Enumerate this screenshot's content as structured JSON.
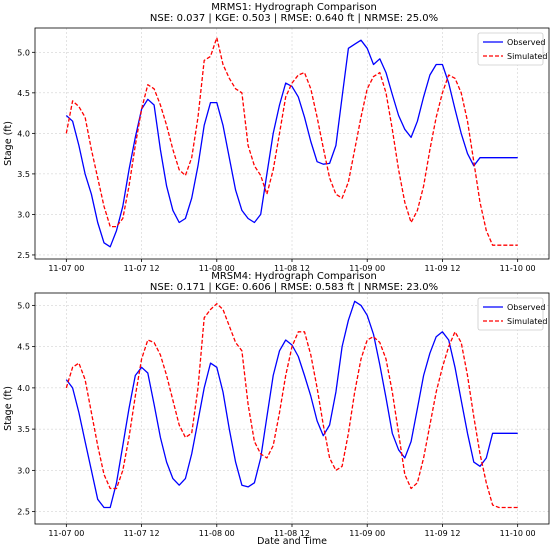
{
  "figure": {
    "xlabel": "Date and Time"
  },
  "chart_data": [
    {
      "type": "line",
      "title_line1": "MRMS1: Hydrograph Comparison",
      "title_line2": "NSE: 0.037 | KGE: 0.503 | RMSE: 0.640 ft | NRMSE: 25.0%",
      "ylabel": "Stage (ft)",
      "xlim": [
        -5,
        77
      ],
      "ylim": [
        2.45,
        5.3
      ],
      "yticks": [
        "2.5",
        "3.0",
        "3.5",
        "4.0",
        "4.5",
        "5.0"
      ],
      "xticks": [
        {
          "at": 0,
          "label": "11-07 00"
        },
        {
          "at": 12,
          "label": "11-07 12"
        },
        {
          "at": 24,
          "label": "11-08 00"
        },
        {
          "at": 36,
          "label": "11-08 12"
        },
        {
          "at": 48,
          "label": "11-09 00"
        },
        {
          "at": 60,
          "label": "11-09 12"
        },
        {
          "at": 72,
          "label": "11-10 00"
        }
      ],
      "legend": {
        "placement": "top-right"
      },
      "series": [
        {
          "name": "Observed",
          "color": "#0000ff",
          "style": "solid",
          "x": [
            0,
            1,
            2,
            3,
            4,
            5,
            6,
            7,
            8,
            9,
            10,
            11,
            12,
            13,
            14,
            15,
            16,
            17,
            18,
            19,
            20,
            21,
            22,
            23,
            24,
            25,
            26,
            27,
            28,
            29,
            30,
            31,
            32,
            33,
            34,
            35,
            36,
            37,
            38,
            39,
            40,
            41,
            42,
            43,
            44,
            45,
            46,
            47,
            48,
            49,
            50,
            51,
            52,
            53,
            54,
            55,
            56,
            57,
            58,
            59,
            60,
            61,
            62,
            63,
            64,
            65,
            66,
            67,
            68,
            69,
            70,
            71,
            72
          ],
          "y": [
            4.22,
            4.15,
            3.85,
            3.5,
            3.25,
            2.9,
            2.65,
            2.6,
            2.8,
            3.1,
            3.55,
            3.95,
            4.3,
            4.42,
            4.35,
            3.8,
            3.35,
            3.05,
            2.9,
            2.95,
            3.2,
            3.6,
            4.1,
            4.38,
            4.38,
            4.1,
            3.7,
            3.3,
            3.05,
            2.95,
            2.9,
            3.0,
            3.5,
            4.0,
            4.35,
            4.62,
            4.58,
            4.45,
            4.2,
            3.9,
            3.65,
            3.62,
            3.63,
            3.85,
            4.45,
            5.05,
            5.1,
            5.15,
            5.05,
            4.85,
            4.92,
            4.75,
            4.48,
            4.22,
            4.05,
            3.95,
            4.15,
            4.45,
            4.72,
            4.85,
            4.85,
            4.62,
            4.3,
            4.0,
            3.75,
            3.6,
            3.7,
            3.7,
            3.7,
            3.7,
            3.7,
            3.7,
            3.7
          ]
        },
        {
          "name": "Simulated",
          "color": "#ff0000",
          "style": "dashed",
          "x": [
            0,
            1,
            2,
            3,
            4,
            5,
            6,
            7,
            8,
            9,
            10,
            11,
            12,
            13,
            14,
            15,
            16,
            17,
            18,
            19,
            20,
            21,
            22,
            23,
            24,
            25,
            26,
            27,
            28,
            29,
            30,
            31,
            32,
            33,
            34,
            35,
            36,
            37,
            38,
            39,
            40,
            41,
            42,
            43,
            44,
            45,
            46,
            47,
            48,
            49,
            50,
            51,
            52,
            53,
            54,
            55,
            56,
            57,
            58,
            59,
            60,
            61,
            62,
            63,
            64,
            65,
            66,
            67,
            68,
            69,
            70,
            71,
            72
          ],
          "y": [
            4.0,
            4.4,
            4.33,
            4.2,
            3.8,
            3.45,
            3.1,
            2.85,
            2.85,
            2.95,
            3.35,
            3.85,
            4.3,
            4.6,
            4.55,
            4.35,
            4.1,
            3.8,
            3.55,
            3.48,
            3.7,
            4.2,
            4.9,
            4.95,
            5.18,
            4.85,
            4.68,
            4.55,
            4.5,
            3.85,
            3.6,
            3.48,
            3.25,
            3.55,
            4.0,
            4.45,
            4.62,
            4.72,
            4.75,
            4.55,
            4.2,
            3.82,
            3.45,
            3.25,
            3.2,
            3.4,
            3.8,
            4.2,
            4.55,
            4.7,
            4.75,
            4.5,
            4.05,
            3.55,
            3.15,
            2.9,
            3.05,
            3.35,
            3.8,
            4.2,
            4.5,
            4.72,
            4.68,
            4.5,
            4.15,
            3.65,
            3.15,
            2.8,
            2.62,
            2.62,
            2.62,
            2.62,
            2.62
          ]
        }
      ]
    },
    {
      "type": "line",
      "title_line1": "MRSM4: Hydrograph Comparison",
      "title_line2": "NSE: 0.171 | KGE: 0.606 | RMSE: 0.583 ft | NRMSE: 23.0%",
      "ylabel": "Stage (ft)",
      "xlim": [
        -5,
        77
      ],
      "ylim": [
        2.35,
        5.15
      ],
      "yticks": [
        "2.5",
        "3.0",
        "3.5",
        "4.0",
        "4.5",
        "5.0"
      ],
      "xticks": [
        {
          "at": 0,
          "label": "11-07 00"
        },
        {
          "at": 12,
          "label": "11-07 12"
        },
        {
          "at": 24,
          "label": "11-08 00"
        },
        {
          "at": 36,
          "label": "11-08 12"
        },
        {
          "at": 48,
          "label": "11-09 00"
        },
        {
          "at": 60,
          "label": "11-09 12"
        },
        {
          "at": 72,
          "label": "11-10 00"
        }
      ],
      "legend": {
        "placement": "top-right"
      },
      "series": [
        {
          "name": "Observed",
          "color": "#0000ff",
          "style": "solid",
          "x": [
            0,
            1,
            2,
            3,
            4,
            5,
            6,
            7,
            8,
            9,
            10,
            11,
            12,
            13,
            14,
            15,
            16,
            17,
            18,
            19,
            20,
            21,
            22,
            23,
            24,
            25,
            26,
            27,
            28,
            29,
            30,
            31,
            32,
            33,
            34,
            35,
            36,
            37,
            38,
            39,
            40,
            41,
            42,
            43,
            44,
            45,
            46,
            47,
            48,
            49,
            50,
            51,
            52,
            53,
            54,
            55,
            56,
            57,
            58,
            59,
            60,
            61,
            62,
            63,
            64,
            65,
            66,
            67,
            68,
            69,
            70,
            71,
            72
          ],
          "y": [
            4.1,
            4.0,
            3.7,
            3.35,
            3.0,
            2.65,
            2.55,
            2.55,
            2.85,
            3.3,
            3.75,
            4.15,
            4.25,
            4.18,
            3.8,
            3.4,
            3.1,
            2.9,
            2.82,
            2.9,
            3.2,
            3.6,
            4.0,
            4.3,
            4.25,
            3.95,
            3.5,
            3.1,
            2.82,
            2.8,
            2.85,
            3.15,
            3.65,
            4.15,
            4.45,
            4.58,
            4.52,
            4.38,
            4.15,
            3.9,
            3.6,
            3.42,
            3.55,
            3.95,
            4.5,
            4.82,
            5.05,
            5.0,
            4.88,
            4.65,
            4.28,
            3.88,
            3.45,
            3.25,
            3.15,
            3.35,
            3.75,
            4.15,
            4.42,
            4.62,
            4.68,
            4.58,
            4.25,
            3.85,
            3.45,
            3.1,
            3.05,
            3.15,
            3.45,
            3.45,
            3.45,
            3.45,
            3.45
          ]
        },
        {
          "name": "Simulated",
          "color": "#ff0000",
          "style": "dashed",
          "x": [
            0,
            1,
            2,
            3,
            4,
            5,
            6,
            7,
            8,
            9,
            10,
            11,
            12,
            13,
            14,
            15,
            16,
            17,
            18,
            19,
            20,
            21,
            22,
            23,
            24,
            25,
            26,
            27,
            28,
            29,
            30,
            31,
            32,
            33,
            34,
            35,
            36,
            37,
            38,
            39,
            40,
            41,
            42,
            43,
            44,
            45,
            46,
            47,
            48,
            49,
            50,
            51,
            52,
            53,
            54,
            55,
            56,
            57,
            58,
            59,
            60,
            61,
            62,
            63,
            64,
            65,
            66,
            67,
            68,
            69,
            70,
            71,
            72
          ],
          "y": [
            4.0,
            4.25,
            4.3,
            4.1,
            3.7,
            3.3,
            2.95,
            2.78,
            2.78,
            3.0,
            3.4,
            3.9,
            4.35,
            4.58,
            4.55,
            4.4,
            4.15,
            3.85,
            3.55,
            3.4,
            3.45,
            4.0,
            4.85,
            4.95,
            5.02,
            4.95,
            4.75,
            4.55,
            4.45,
            3.8,
            3.35,
            3.2,
            3.15,
            3.3,
            3.7,
            4.15,
            4.5,
            4.68,
            4.68,
            4.4,
            4.0,
            3.55,
            3.15,
            3.0,
            3.05,
            3.45,
            3.95,
            4.35,
            4.58,
            4.62,
            4.55,
            4.35,
            3.95,
            3.45,
            2.95,
            2.78,
            2.85,
            3.15,
            3.55,
            3.95,
            4.25,
            4.5,
            4.68,
            4.55,
            4.15,
            3.65,
            3.2,
            2.85,
            2.58,
            2.55,
            2.55,
            2.55,
            2.55
          ]
        }
      ]
    }
  ]
}
